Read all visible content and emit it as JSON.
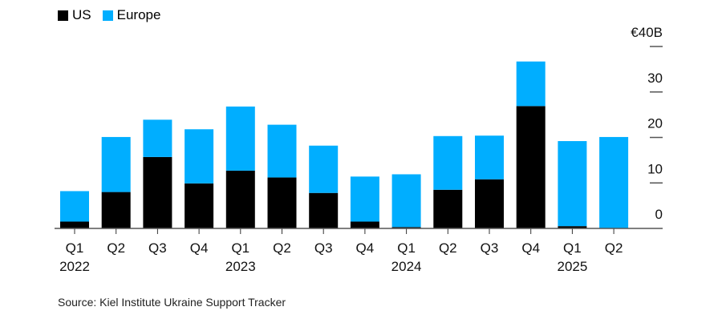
{
  "legend": [
    {
      "label": "US",
      "color": "#000000"
    },
    {
      "label": "Europe",
      "color": "#00aeff"
    }
  ],
  "source": "Source: Kiel Institute Ukraine Support Tracker",
  "chart_data": {
    "type": "bar",
    "stacked": true,
    "title": "",
    "xlabel": "",
    "ylabel": "",
    "categories": [
      "Q1 2022",
      "Q2 2022",
      "Q3 2022",
      "Q4 2022",
      "Q1 2023",
      "Q2 2023",
      "Q3 2023",
      "Q4 2023",
      "Q1 2024",
      "Q2 2024",
      "Q3 2024",
      "Q4 2024",
      "Q1 2025",
      "Q2 2025"
    ],
    "tick_labels": [
      [
        "Q1",
        "2022"
      ],
      [
        "Q2",
        ""
      ],
      [
        "Q3",
        ""
      ],
      [
        "Q4",
        ""
      ],
      [
        "Q1",
        "2023"
      ],
      [
        "Q2",
        ""
      ],
      [
        "Q3",
        ""
      ],
      [
        "Q4",
        ""
      ],
      [
        "Q1",
        "2024"
      ],
      [
        "Q2",
        ""
      ],
      [
        "Q3",
        ""
      ],
      [
        "Q4",
        ""
      ],
      [
        "Q1",
        "2025"
      ],
      [
        "Q2",
        ""
      ]
    ],
    "series": [
      {
        "name": "US",
        "color": "#000000",
        "values": [
          1.5,
          8.0,
          15.7,
          9.9,
          12.7,
          11.2,
          7.8,
          1.5,
          0.3,
          8.5,
          10.8,
          26.9,
          0.5,
          0
        ]
      },
      {
        "name": "Europe",
        "color": "#00aeff",
        "values": [
          6.7,
          12.1,
          8.2,
          11.9,
          14.1,
          11.6,
          10.4,
          9.9,
          11.6,
          11.8,
          9.6,
          9.8,
          18.7,
          20.1
        ]
      }
    ],
    "ylim": [
      0,
      40
    ],
    "yticks": [
      0,
      10,
      20,
      30,
      40
    ],
    "ytick_labels": [
      "0",
      "10",
      "20",
      "30",
      "€40B"
    ],
    "y_axis_position": "right",
    "legend_position": "top-left"
  }
}
